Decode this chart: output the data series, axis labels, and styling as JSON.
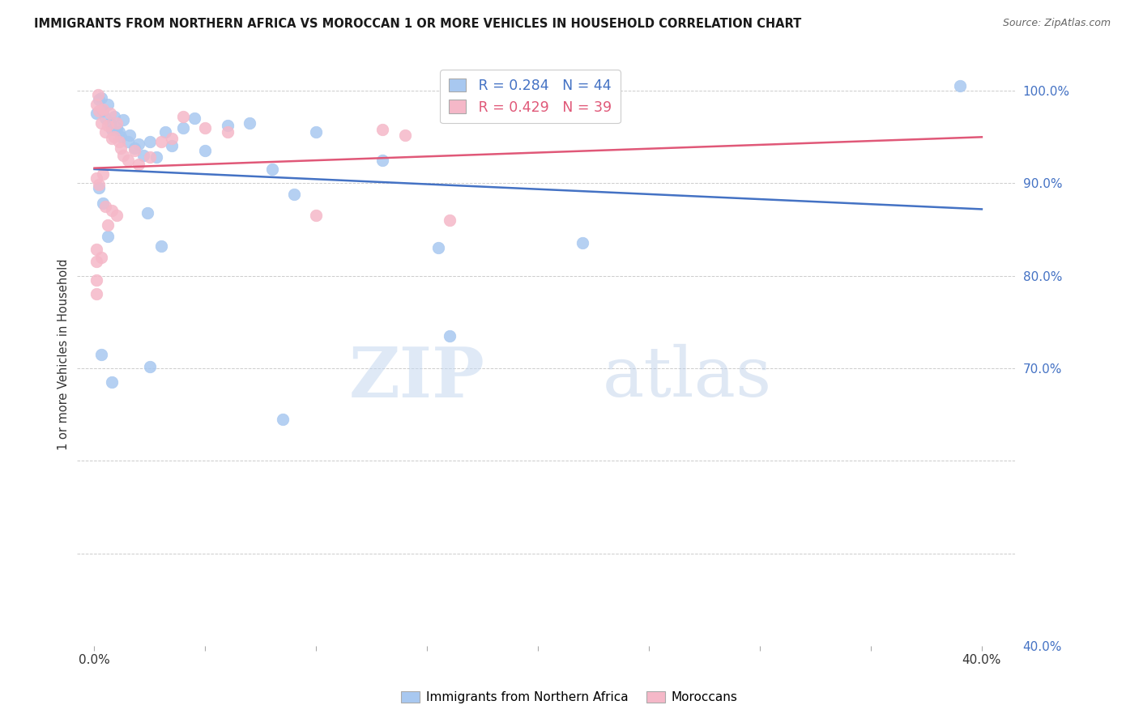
{
  "title": "IMMIGRANTS FROM NORTHERN AFRICA VS MOROCCAN 1 OR MORE VEHICLES IN HOUSEHOLD CORRELATION CHART",
  "source": "Source: ZipAtlas.com",
  "ylabel": "1 or more Vehicles in Household",
  "legend_label1": "Immigrants from Northern Africa",
  "legend_label2": "Moroccans",
  "r1": 0.284,
  "n1": 44,
  "r2": 0.429,
  "n2": 39,
  "color1": "#a8c8f0",
  "color2": "#f5b8c8",
  "line_color1": "#4472c4",
  "line_color2": "#e05878",
  "watermark_zip": "ZIP",
  "watermark_atlas": "atlas",
  "blue_points_pct": [
    [
      0.1,
      97.5
    ],
    [
      0.2,
      99.0
    ],
    [
      0.3,
      99.2
    ],
    [
      0.4,
      97.8
    ],
    [
      0.5,
      97.0
    ],
    [
      0.6,
      98.5
    ],
    [
      0.7,
      96.5
    ],
    [
      0.8,
      95.8
    ],
    [
      0.9,
      97.2
    ],
    [
      1.0,
      96.0
    ],
    [
      1.1,
      95.5
    ],
    [
      1.2,
      95.0
    ],
    [
      1.3,
      96.8
    ],
    [
      1.5,
      94.5
    ],
    [
      1.6,
      95.2
    ],
    [
      1.8,
      93.8
    ],
    [
      2.0,
      94.2
    ],
    [
      2.2,
      93.0
    ],
    [
      2.5,
      94.5
    ],
    [
      2.8,
      92.8
    ],
    [
      3.2,
      95.5
    ],
    [
      3.5,
      94.0
    ],
    [
      4.0,
      96.0
    ],
    [
      4.5,
      97.0
    ],
    [
      5.0,
      93.5
    ],
    [
      6.0,
      96.2
    ],
    [
      7.0,
      96.5
    ],
    [
      8.0,
      91.5
    ],
    [
      9.0,
      88.8
    ],
    [
      10.0,
      95.5
    ],
    [
      13.0,
      92.5
    ],
    [
      0.2,
      89.5
    ],
    [
      0.4,
      87.8
    ],
    [
      0.6,
      84.2
    ],
    [
      2.4,
      86.8
    ],
    [
      3.0,
      83.2
    ],
    [
      15.5,
      83.0
    ],
    [
      22.0,
      83.5
    ],
    [
      0.3,
      71.5
    ],
    [
      2.5,
      70.2
    ],
    [
      8.5,
      64.5
    ],
    [
      16.0,
      73.5
    ],
    [
      39.0,
      100.5
    ],
    [
      0.8,
      68.5
    ]
  ],
  "pink_points_pct": [
    [
      0.1,
      98.5
    ],
    [
      0.15,
      99.5
    ],
    [
      0.2,
      97.8
    ],
    [
      0.3,
      96.5
    ],
    [
      0.4,
      98.0
    ],
    [
      0.5,
      95.5
    ],
    [
      0.6,
      96.2
    ],
    [
      0.7,
      97.5
    ],
    [
      0.8,
      94.8
    ],
    [
      0.9,
      95.0
    ],
    [
      1.0,
      96.5
    ],
    [
      1.1,
      94.5
    ],
    [
      1.2,
      93.8
    ],
    [
      1.3,
      93.0
    ],
    [
      1.5,
      92.5
    ],
    [
      1.8,
      93.5
    ],
    [
      2.0,
      92.0
    ],
    [
      2.5,
      92.8
    ],
    [
      3.0,
      94.5
    ],
    [
      0.1,
      90.5
    ],
    [
      0.2,
      89.8
    ],
    [
      0.4,
      91.0
    ],
    [
      0.5,
      87.5
    ],
    [
      0.6,
      85.5
    ],
    [
      0.8,
      87.0
    ],
    [
      1.0,
      86.5
    ],
    [
      3.5,
      94.8
    ],
    [
      4.0,
      97.2
    ],
    [
      0.1,
      82.8
    ],
    [
      0.3,
      82.0
    ],
    [
      13.0,
      95.8
    ],
    [
      14.0,
      95.2
    ],
    [
      0.1,
      81.5
    ],
    [
      10.0,
      86.5
    ],
    [
      16.0,
      86.0
    ],
    [
      0.1,
      79.5
    ],
    [
      5.0,
      96.0
    ],
    [
      6.0,
      95.5
    ],
    [
      0.1,
      78.0
    ]
  ]
}
